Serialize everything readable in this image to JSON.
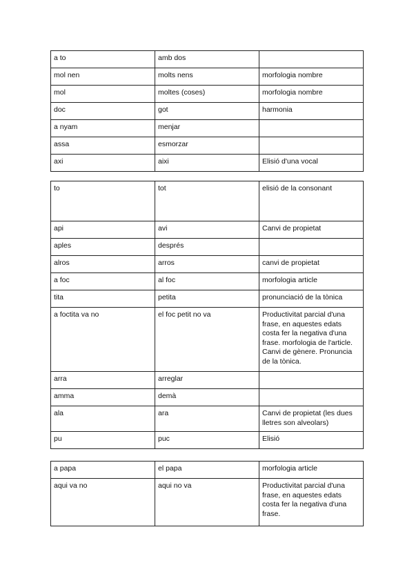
{
  "tables": [
    {
      "rows": [
        [
          "a to",
          "amb dos",
          ""
        ],
        [
          "mol nen",
          "molts nens",
          "morfologia nombre"
        ],
        [
          "mol",
          "moltes (coses)",
          "morfologia nombre"
        ],
        [
          "doc",
          "got",
          "harmonia"
        ],
        [
          "a nyam",
          "menjar",
          ""
        ],
        [
          "assa",
          "esmorzar",
          ""
        ],
        [
          "axi",
          "aixi",
          "Elisió d'una vocal"
        ]
      ]
    },
    {
      "rows": [
        [
          "to",
          "tot",
          "elisió de la consonant"
        ],
        [
          "api",
          "avi",
          "Canvi de propietat"
        ],
        [
          "aples",
          "després",
          ""
        ],
        [
          "alros",
          "arros",
          "canvi de propietat"
        ],
        [
          "a foc",
          "al foc",
          "morfologia article"
        ],
        [
          "tita",
          "petita",
          "pronunciació de la tònica"
        ],
        [
          "a foctita va no",
          "el foc petit no va",
          "Productivitat parcial d'una frase, en aquestes edats costa fer la negativa d'una frase. morfologia de l'article. Canvi de gènere. Pronuncia de la tònica."
        ],
        [
          "arra",
          "arreglar",
          ""
        ],
        [
          "amma",
          "demà",
          ""
        ],
        [
          "ala",
          "ara",
          "Canvi de propietat (les dues lletres son alveolars)"
        ],
        [
          "pu",
          "puc",
          "Elisió"
        ]
      ]
    },
    {
      "rows": [
        [
          "a papa",
          "el papa",
          "morfologia article"
        ],
        [
          "aqui va no",
          "aqui no va",
          "Productivitat parcial d'una frase, en aquestes edats costa fer la negativa d'una frase."
        ]
      ]
    }
  ]
}
